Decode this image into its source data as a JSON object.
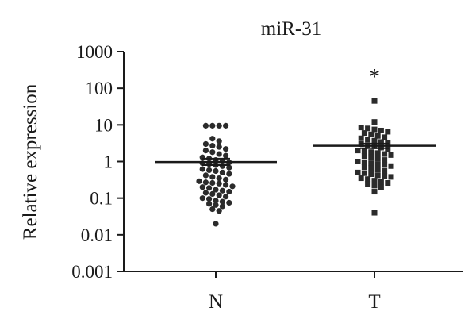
{
  "chart_data": {
    "type": "scatter",
    "title": "miR-31",
    "ylabel": "Relative expression",
    "xlabel": "",
    "yscale": "log",
    "ylim": [
      0.001,
      1000
    ],
    "ytick_labels": [
      "0.001",
      "0.01",
      "0.1",
      "1",
      "10",
      "100",
      "1000"
    ],
    "ytick_values": [
      0.001,
      0.01,
      0.1,
      1,
      10,
      100,
      1000
    ],
    "categories": [
      "N",
      "T"
    ],
    "grid": false,
    "annotations": [
      {
        "category": "T",
        "text": "*"
      }
    ],
    "series": [
      {
        "category": "N",
        "marker": "circle",
        "mean": 0.97,
        "sem_range": [
          0.8,
          1.2
        ],
        "values": [
          9.5,
          9.5,
          9.5,
          9.5,
          4.2,
          3.6,
          3.0,
          2.7,
          2.5,
          2.2,
          2.0,
          1.8,
          1.6,
          1.45,
          1.3,
          1.2,
          1.1,
          1.05,
          0.95,
          0.9,
          0.85,
          0.8,
          0.75,
          0.68,
          0.62,
          0.58,
          0.55,
          0.5,
          0.46,
          0.42,
          0.38,
          0.35,
          0.32,
          0.29,
          0.27,
          0.26,
          0.25,
          0.23,
          0.21,
          0.2,
          0.19,
          0.17,
          0.16,
          0.15,
          0.14,
          0.13,
          0.12,
          0.11,
          0.1,
          0.095,
          0.085,
          0.08,
          0.075,
          0.07,
          0.065,
          0.06,
          0.05,
          0.045,
          0.02
        ]
      },
      {
        "category": "T",
        "marker": "square",
        "mean": 2.7,
        "sem_range": [
          2.3,
          3.1
        ],
        "values": [
          45,
          12,
          8.5,
          8.0,
          7.5,
          7.0,
          6.5,
          6.0,
          5.5,
          5.0,
          4.6,
          4.3,
          4.0,
          3.7,
          3.4,
          3.2,
          3.0,
          2.8,
          2.6,
          2.4,
          2.2,
          2.0,
          1.9,
          1.8,
          1.7,
          1.6,
          1.5,
          1.4,
          1.3,
          1.2,
          1.1,
          1.0,
          0.95,
          0.9,
          0.85,
          0.8,
          0.75,
          0.7,
          0.65,
          0.6,
          0.55,
          0.5,
          0.48,
          0.45,
          0.42,
          0.4,
          0.38,
          0.35,
          0.33,
          0.3,
          0.28,
          0.26,
          0.24,
          0.22,
          0.2,
          0.15,
          0.04
        ]
      }
    ]
  }
}
